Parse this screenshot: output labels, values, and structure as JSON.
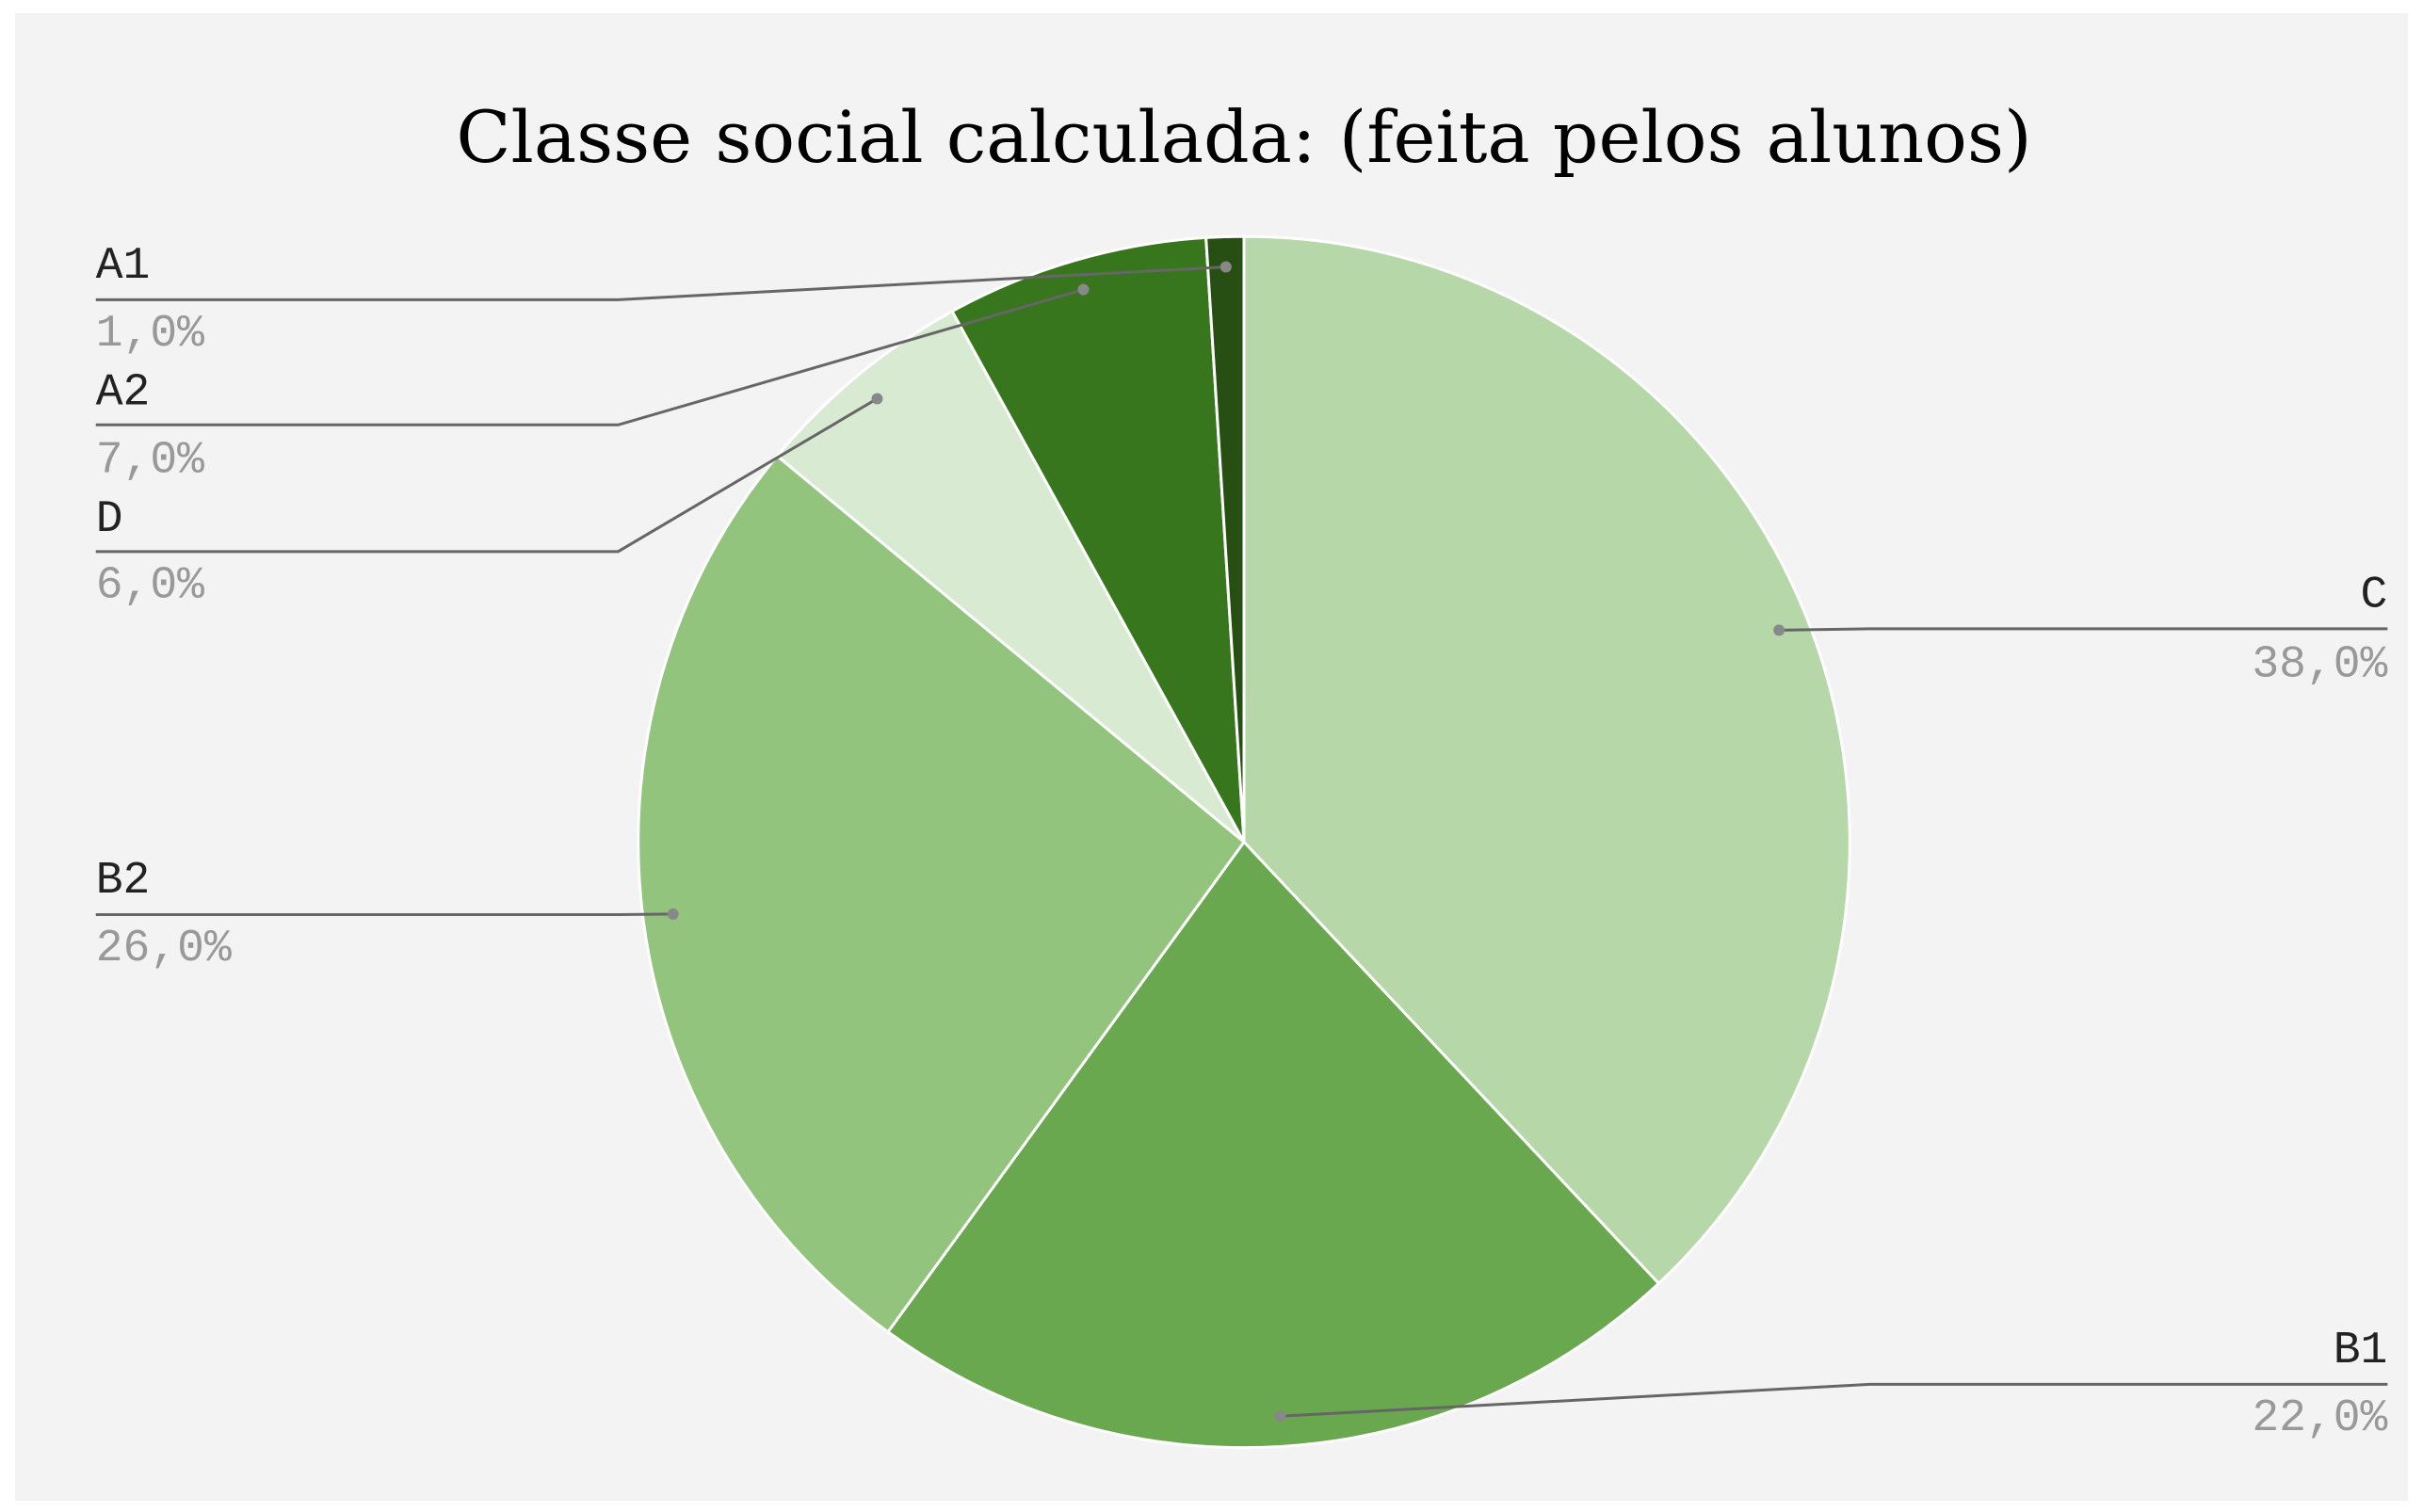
{
  "chart_data": {
    "type": "pie",
    "title": "Classe social calculada: (feita pelos alunos)",
    "categories": [
      "C",
      "B1",
      "B2",
      "D",
      "A2",
      "A1"
    ],
    "values": [
      38,
      22,
      26,
      6,
      7,
      1
    ],
    "value_labels": [
      "38,0%",
      "22,0%",
      "26,0%",
      "6,0%",
      "7,0%",
      "1,0%"
    ],
    "colors": [
      "#b6d7a8",
      "#6aa84f",
      "#93c47d",
      "#d9ead3",
      "#38761d",
      "#274e13"
    ]
  }
}
